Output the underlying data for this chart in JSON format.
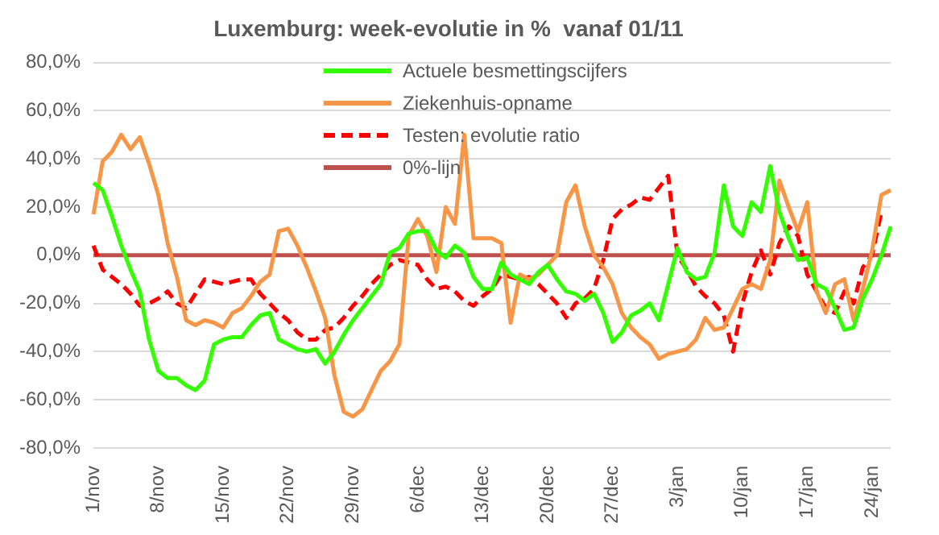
{
  "chart_data": {
    "type": "line",
    "title": "Luxemburg: week-evolutie in %  vanaf 01/11",
    "categories": [
      "1/nov",
      null,
      null,
      null,
      null,
      null,
      null,
      "8/nov",
      null,
      null,
      null,
      null,
      null,
      null,
      "15/nov",
      null,
      null,
      null,
      null,
      null,
      null,
      "22/nov",
      null,
      null,
      null,
      null,
      null,
      null,
      "29/nov",
      null,
      null,
      null,
      null,
      null,
      null,
      "6/dec",
      null,
      null,
      null,
      null,
      null,
      null,
      "13/dec",
      null,
      null,
      null,
      null,
      null,
      null,
      "20/dec",
      null,
      null,
      null,
      null,
      null,
      null,
      "27/dec",
      null,
      null,
      null,
      null,
      null,
      null,
      "3/jan",
      null,
      null,
      null,
      null,
      null,
      null,
      "10/jan",
      null,
      null,
      null,
      null,
      null,
      null,
      "17/jan",
      null,
      null,
      null,
      null,
      null,
      null,
      "24/jan",
      null,
      null
    ],
    "series": [
      {
        "name": "Actuele besmettingscijfers",
        "color": "#33ff00",
        "values": [
          30,
          27,
          16,
          4,
          -6,
          -15,
          -35,
          -48,
          -51,
          -51,
          -54,
          -56,
          -52,
          -37,
          -35,
          -34,
          -34,
          -29,
          -25,
          -24,
          -35,
          -37,
          -39,
          -40,
          -39,
          -45,
          -40,
          -33,
          -27,
          -22,
          -17,
          -12,
          1,
          3,
          9,
          10,
          10,
          2,
          -1,
          4,
          1,
          -9,
          -14,
          -14,
          -3,
          -8,
          -10,
          -12,
          -7,
          -4,
          -10,
          -15,
          -16,
          -19,
          -16,
          -24,
          -36,
          -32,
          -25,
          -23,
          -20,
          -27,
          -12,
          3,
          -7,
          -10,
          -9,
          1,
          29,
          12,
          8,
          22,
          18,
          37,
          18,
          7,
          -2,
          -1,
          -12,
          -14,
          -22,
          -31,
          -30,
          -18,
          -10,
          0,
          12
        ]
      },
      {
        "name": "Ziekenhuis-opname",
        "color": "#f79646",
        "values": [
          17,
          39,
          43,
          50,
          44,
          49,
          38,
          25,
          5,
          -9,
          -27,
          -29,
          -27,
          -28,
          -30,
          -24,
          -22,
          -17,
          -11,
          -8,
          10,
          11,
          4,
          -5,
          -15,
          -26,
          -50,
          -65,
          -67,
          -64,
          -56,
          -48,
          -44,
          -37,
          8,
          15,
          8,
          -7,
          20,
          13,
          50,
          7,
          7,
          7,
          5,
          -28,
          -8,
          -10,
          -8,
          -4,
          0,
          22,
          29,
          12,
          0,
          -5,
          -12,
          -24,
          -30,
          -34,
          -37,
          -43,
          -41,
          -40,
          -39,
          -35,
          -26,
          -31,
          -30,
          -22,
          -14,
          -12,
          -14,
          -2,
          31,
          20,
          10,
          22,
          -15,
          -24,
          -12,
          -10,
          -27,
          -14,
          2,
          25,
          27
        ]
      },
      {
        "name": "Testen: evolutie ratio",
        "color": "#ff0000",
        "line_style": "dashed",
        "values": [
          4,
          -6,
          -9,
          -12,
          -16,
          -21,
          -20,
          -18,
          -15,
          -20,
          -22,
          -16,
          -10,
          -11,
          -12,
          -11,
          -10,
          -10,
          -16,
          -20,
          -24,
          -27,
          -32,
          -35,
          -35,
          -31,
          -30,
          -26,
          -21,
          -17,
          -12,
          -8,
          -4,
          -2,
          -3,
          -4,
          -10,
          -14,
          -13,
          -15,
          -19,
          -21,
          -17,
          -14,
          -8,
          -9,
          -10,
          -9,
          -12,
          -16,
          -20,
          -26,
          -20,
          -18,
          -14,
          -2,
          15,
          19,
          21,
          24,
          23,
          28,
          33,
          0,
          -6,
          -13,
          -17,
          -20,
          -25,
          -40,
          -20,
          -7,
          2,
          -8,
          5,
          12,
          8,
          -8,
          -15,
          -22,
          -24,
          -15,
          -20,
          -5,
          0,
          18,
          null
        ]
      },
      {
        "name": "0%-lijn",
        "color": "#c0504d",
        "values": [
          0,
          0,
          0,
          0,
          0,
          0,
          0,
          0,
          0,
          0,
          0,
          0,
          0,
          0,
          0,
          0,
          0,
          0,
          0,
          0,
          0,
          0,
          0,
          0,
          0,
          0,
          0,
          0,
          0,
          0,
          0,
          0,
          0,
          0,
          0,
          0,
          0,
          0,
          0,
          0,
          0,
          0,
          0,
          0,
          0,
          0,
          0,
          0,
          0,
          0,
          0,
          0,
          0,
          0,
          0,
          0,
          0,
          0,
          0,
          0,
          0,
          0,
          0,
          0,
          0,
          0,
          0,
          0,
          0,
          0,
          0,
          0,
          0,
          0,
          0,
          0,
          0,
          0,
          0,
          0,
          0,
          0,
          0,
          0,
          0,
          0,
          0
        ]
      }
    ],
    "ylim": [
      -80,
      80
    ],
    "yticks": [
      {
        "value": -80,
        "label": "-80,0%"
      },
      {
        "value": -60,
        "label": "-60,0%"
      },
      {
        "value": -40,
        "label": "-40,0%"
      },
      {
        "value": -20,
        "label": "-20,0%"
      },
      {
        "value": 0,
        "label": "0,0%"
      },
      {
        "value": 20,
        "label": "20,0%"
      },
      {
        "value": 40,
        "label": "40,0%"
      },
      {
        "value": 60,
        "label": "60,0%"
      },
      {
        "value": 80,
        "label": "80,0%"
      }
    ],
    "grid": "y",
    "legend": "top",
    "marker": "none"
  }
}
